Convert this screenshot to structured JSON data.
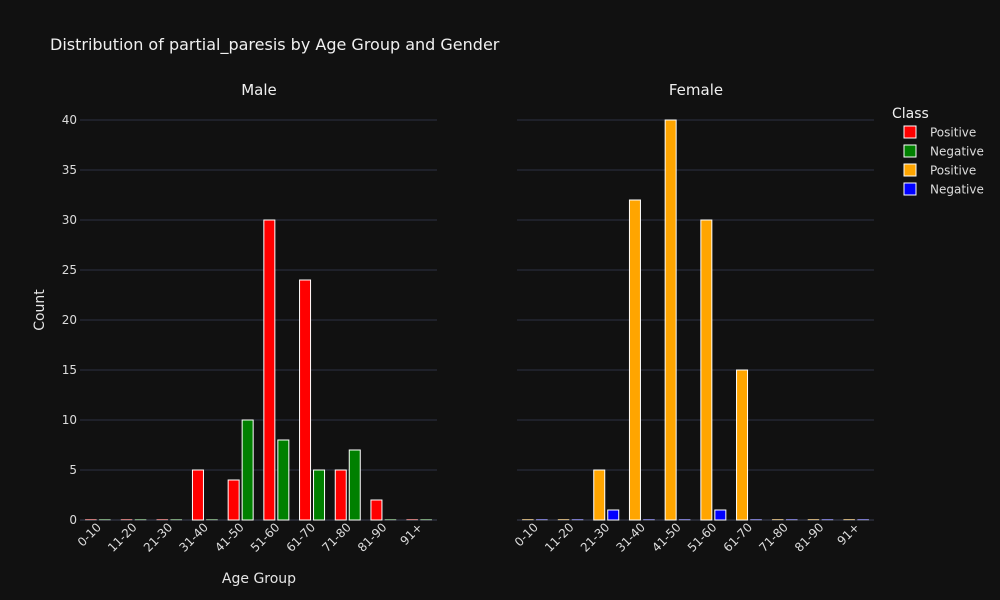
{
  "chart_data": {
    "type": "bar",
    "title": "Distribution of partial_paresis by Age Group and Gender",
    "xlabel": "Age Group",
    "ylabel": "Count",
    "ylim": [
      0,
      42
    ],
    "yticks": [
      0,
      5,
      10,
      15,
      20,
      25,
      30,
      35,
      40
    ],
    "categories": [
      "0-10",
      "11-20",
      "21-30",
      "31-40",
      "41-50",
      "51-60",
      "61-70",
      "71-80",
      "81-90",
      "91+"
    ],
    "grid": true,
    "legend": {
      "title": "Class",
      "position": "right",
      "entries": [
        {
          "label": "Positive",
          "color": "#ff0000"
        },
        {
          "label": "Negative",
          "color": "#008000"
        },
        {
          "label": "Positive",
          "color": "#ffa500"
        },
        {
          "label": "Negative",
          "color": "#0000ff"
        }
      ]
    },
    "panels": [
      {
        "title": "Male",
        "series": [
          {
            "name": "Positive",
            "color": "#ff0000",
            "values": [
              0,
              0,
              0,
              5,
              4,
              30,
              24,
              5,
              2,
              0
            ]
          },
          {
            "name": "Negative",
            "color": "#008000",
            "values": [
              0,
              0,
              0,
              0,
              10,
              8,
              5,
              7,
              0,
              0
            ]
          }
        ]
      },
      {
        "title": "Female",
        "series": [
          {
            "name": "Positive",
            "color": "#ffa500",
            "values": [
              0,
              0,
              5,
              32,
              40,
              30,
              15,
              0,
              0,
              0
            ]
          },
          {
            "name": "Negative",
            "color": "#0000ff",
            "values": [
              0,
              0,
              1,
              0,
              0,
              1,
              0,
              0,
              0,
              0
            ]
          }
        ]
      }
    ]
  }
}
